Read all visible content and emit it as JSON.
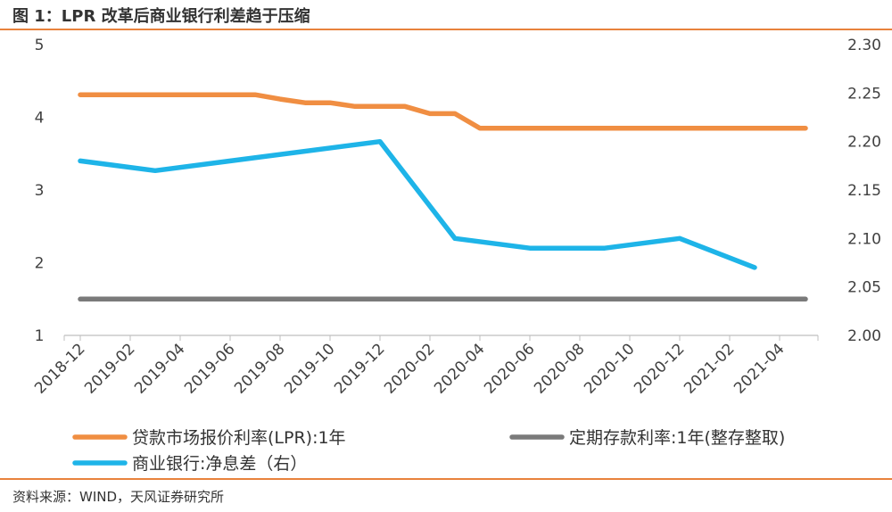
{
  "figure_title": "图 1：LPR 改革后商业银行利差趋于压缩",
  "source": "资料来源：WIND，天风证券研究所",
  "colors": {
    "lpr": "#f08e42",
    "deposit": "#7a7a7a",
    "nim": "#1eb4e8",
    "accent": "#e8823c",
    "axis": "#bfbfbf"
  },
  "chart_data": {
    "type": "line",
    "title": "",
    "categories": [
      "2018-12",
      "2019-02",
      "2019-04",
      "2019-06",
      "2019-08",
      "2019-10",
      "2019-12",
      "2020-02",
      "2020-04",
      "2020-06",
      "2020-08",
      "2020-10",
      "2020-12",
      "2021-02",
      "2021-04"
    ],
    "x_range": [
      "2018-12",
      "2021-06"
    ],
    "y_left": {
      "min": 1,
      "max": 5,
      "ticks": [
        "1",
        "2",
        "3",
        "4",
        "5"
      ]
    },
    "y_right": {
      "min": 2.0,
      "max": 2.3,
      "ticks": [
        "2.00",
        "2.05",
        "2.10",
        "2.15",
        "2.20",
        "2.25",
        "2.30"
      ]
    },
    "series": [
      {
        "name": "贷款市场报价利率(LPR):1年",
        "axis": "left",
        "color": "#f08e42",
        "points": [
          [
            "2018-12",
            4.31
          ],
          [
            "2019-07",
            4.31
          ],
          [
            "2019-08",
            4.25
          ],
          [
            "2019-09",
            4.2
          ],
          [
            "2019-10",
            4.2
          ],
          [
            "2019-11",
            4.15
          ],
          [
            "2020-01",
            4.15
          ],
          [
            "2020-02",
            4.05
          ],
          [
            "2020-03",
            4.05
          ],
          [
            "2020-04",
            3.85
          ],
          [
            "2021-06",
            3.85
          ]
        ]
      },
      {
        "name": "定期存款利率:1年(整存整取)",
        "axis": "left",
        "color": "#7a7a7a",
        "points": [
          [
            "2018-12",
            1.5
          ],
          [
            "2021-06",
            1.5
          ]
        ]
      },
      {
        "name": "商业银行:净息差（右）",
        "axis": "right",
        "color": "#1eb4e8",
        "points": [
          [
            "2018-12",
            2.18
          ],
          [
            "2019-03",
            2.17
          ],
          [
            "2019-12",
            2.2
          ],
          [
            "2020-03",
            2.1
          ],
          [
            "2020-06",
            2.09
          ],
          [
            "2020-09",
            2.09
          ],
          [
            "2020-12",
            2.1
          ],
          [
            "2021-03",
            2.07
          ]
        ]
      }
    ]
  }
}
